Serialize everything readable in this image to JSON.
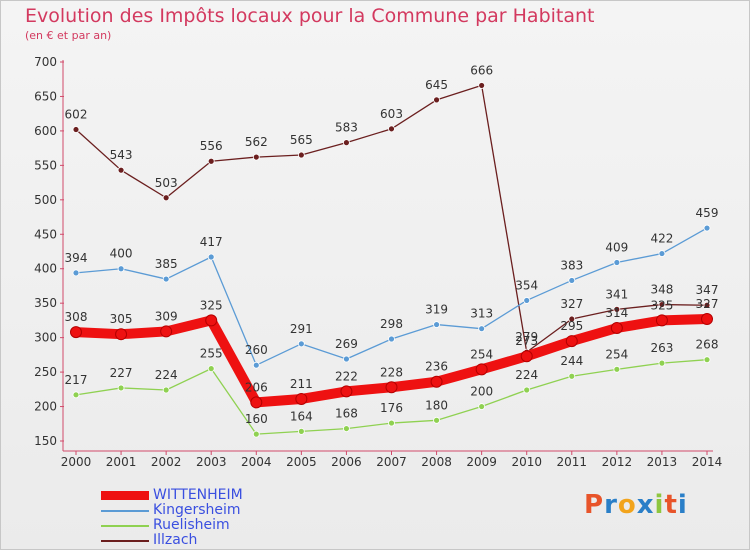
{
  "header": {
    "title": "Evolution des Impôts locaux pour la Commune par Habitant",
    "subtitle": "(en € et par an)"
  },
  "logo": {
    "text": "Proxiti",
    "colors": [
      "#e8542a",
      "#2a7fc8",
      "#f2a41c",
      "#2a7fc8",
      "#8ec63f",
      "#e8542a",
      "#2a7fc8"
    ]
  },
  "chart_data": {
    "type": "line",
    "x": [
      "2000",
      "2001",
      "2002",
      "2003",
      "2004",
      "2005",
      "2006",
      "2007",
      "2008",
      "2009",
      "2010",
      "2011",
      "2012",
      "2013",
      "2014"
    ],
    "ylim": [
      150,
      700
    ],
    "yticks": [
      150,
      200,
      250,
      300,
      350,
      400,
      450,
      500,
      550,
      600,
      650,
      700
    ],
    "grid": false,
    "legend_position": "bottom-left",
    "series": [
      {
        "name": "Illzach",
        "color": "#6b1f1f",
        "values": [
          602,
          543,
          503,
          556,
          562,
          565,
          583,
          603,
          645,
          666,
          279,
          327,
          341,
          348,
          347
        ]
      },
      {
        "name": "Kingersheim",
        "color": "#5b9bd5",
        "values": [
          394,
          400,
          385,
          417,
          260,
          291,
          269,
          298,
          319,
          313,
          354,
          383,
          409,
          422,
          459
        ]
      },
      {
        "name": "Ruelisheim",
        "color": "#8fd151",
        "values": [
          217,
          227,
          224,
          255,
          160,
          164,
          168,
          176,
          180,
          200,
          224,
          244,
          254,
          263,
          268
        ]
      },
      {
        "name": "WITTENHEIM",
        "color": "#ee1111",
        "values": [
          308,
          305,
          309,
          325,
          206,
          211,
          222,
          228,
          236,
          254,
          273,
          295,
          314,
          325,
          327
        ]
      }
    ],
    "legend": [
      {
        "name": "WITTENHEIM",
        "color": "#ee1111",
        "text_color": "#3a4fe0",
        "thick": true
      },
      {
        "name": "Kingersheim",
        "color": "#5b9bd5",
        "text_color": "#3a4fe0",
        "thick": false
      },
      {
        "name": "Ruelisheim",
        "color": "#8fd151",
        "text_color": "#3a4fe0",
        "thick": false
      },
      {
        "name": "Illzach",
        "color": "#6b1f1f",
        "text_color": "#3a4fe0",
        "thick": false
      }
    ]
  }
}
